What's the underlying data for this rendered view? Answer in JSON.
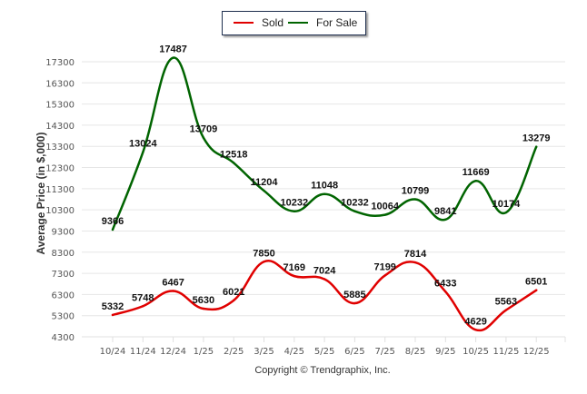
{
  "chart_data": {
    "type": "line",
    "title": "",
    "xlabel": "",
    "ylabel": "Average Price (in $,000)",
    "categories": [
      "10/24",
      "11/24",
      "12/24",
      "1/25",
      "2/25",
      "3/25",
      "4/25",
      "5/25",
      "6/25",
      "7/25",
      "8/25",
      "9/25",
      "10/25",
      "11/25",
      "12/25"
    ],
    "y_ticks": [
      4300,
      5300,
      6300,
      7300,
      8300,
      9300,
      10300,
      11300,
      12300,
      13300,
      14300,
      15300,
      16300,
      17300
    ],
    "ylim": [
      4300,
      17300
    ],
    "grid": true,
    "legend_position": "top-center",
    "series": [
      {
        "name": "Sold",
        "color": "#e00000",
        "values": [
          5332,
          5748,
          6467,
          5630,
          6021,
          7850,
          7169,
          7024,
          5885,
          7199,
          7814,
          6433,
          4629,
          5563,
          6501
        ]
      },
      {
        "name": "For Sale",
        "color": "#006400",
        "values": [
          9366,
          13024,
          17487,
          13709,
          12518,
          11204,
          10232,
          11048,
          10232,
          10064,
          10799,
          9841,
          11669,
          10174,
          13279
        ]
      }
    ]
  },
  "legend": {
    "sold": "Sold",
    "for_sale": "For Sale"
  },
  "copyright": "Copyright © Trendgraphix, Inc."
}
